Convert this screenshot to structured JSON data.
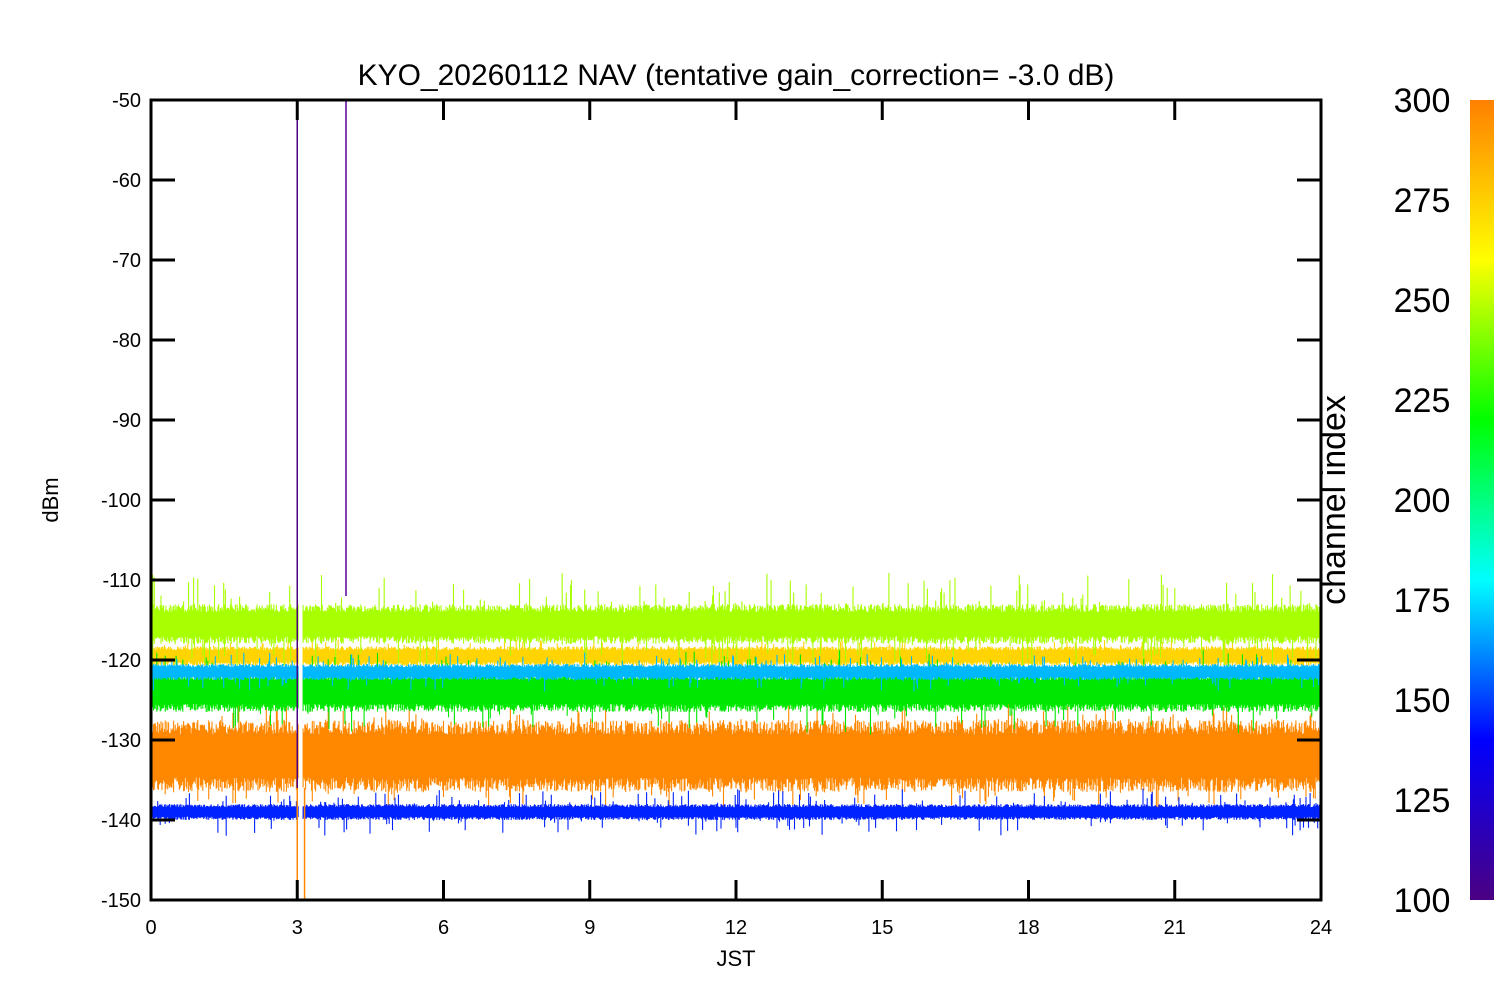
{
  "chart_data": {
    "type": "line",
    "title": "KYO_20260112 NAV (tentative gain_correction= -3.0 dB)",
    "xlabel": "JST",
    "ylabel": "dBm",
    "xlim": [
      0,
      24
    ],
    "ylim": [
      -150,
      -50
    ],
    "x_ticks": [
      0,
      3,
      6,
      9,
      12,
      15,
      18,
      21,
      24
    ],
    "y_ticks": [
      -50,
      -60,
      -70,
      -80,
      -90,
      -100,
      -110,
      -120,
      -130,
      -140,
      -150
    ],
    "series": [
      {
        "name": "channel ~300",
        "color": "#ff8800",
        "center": -132.0,
        "spread": 4.5,
        "peak": 2.5
      },
      {
        "name": "channel ~280",
        "color": "#ffd400",
        "center": -119.5,
        "spread": 1.2,
        "peak": 1.0
      },
      {
        "name": "channel ~260",
        "color": "#a8ff00",
        "center": -115.5,
        "spread": 2.5,
        "peak": 4.0
      },
      {
        "name": "channel ~230",
        "color": "#00e800",
        "center": -124.0,
        "spread": 2.5,
        "peak": 3.0
      },
      {
        "name": "channel ~170",
        "color": "#00b8ff",
        "center": -121.5,
        "spread": 1.0,
        "peak": 1.5
      },
      {
        "name": "channel ~130",
        "color": "#0022ff",
        "center": -139.0,
        "spread": 1.0,
        "peak": 2.0
      }
    ],
    "spikes": [
      {
        "x": 3.0,
        "y_from": -150,
        "y_to": -52,
        "color": "#4b0082"
      },
      {
        "x": 4.0,
        "y_from": -112,
        "y_to": -50,
        "color": "#5a009a"
      },
      {
        "x": 3.0,
        "y_from": -150,
        "y_to": -136,
        "color": "#ff8800"
      },
      {
        "x": 3.15,
        "y_from": -150,
        "y_to": -136,
        "color": "#ff8800"
      }
    ],
    "gap": {
      "x_from": 3.03,
      "x_to": 3.12
    },
    "colorbar": {
      "title": "channel index",
      "range": [
        100,
        300
      ],
      "ticks": [
        100,
        125,
        150,
        175,
        200,
        225,
        250,
        275,
        300
      ],
      "colors": [
        "#4b0082",
        "#0000ff",
        "#00ffff",
        "#00ff00",
        "#ffff00",
        "#ff8000"
      ]
    }
  }
}
